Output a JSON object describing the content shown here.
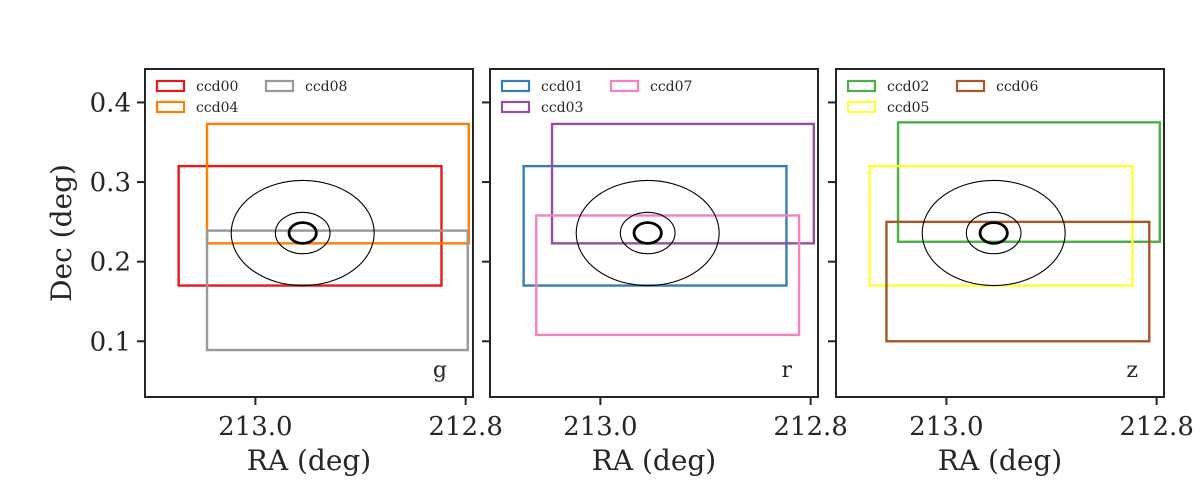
{
  "chart_data": {
    "type": "scatter",
    "xlabel": "RA (deg)",
    "ylabel": "Dec (deg)",
    "xlim": [
      213.105,
      212.793
    ],
    "ylim": [
      0.03,
      0.442
    ],
    "xticks": [
      213.0,
      212.8
    ],
    "xtick_labels": [
      "213.0",
      "212.8"
    ],
    "yticks": [
      0.1,
      0.2,
      0.3,
      0.4
    ],
    "ytick_labels": [
      "0.1",
      "0.2",
      "0.3",
      "0.4"
    ],
    "circles": {
      "center": [
        212.955,
        0.236
      ],
      "radii_dec_deg": [
        0.066,
        0.026,
        0.013
      ],
      "radii_ra_deg": [
        0.068,
        0.026,
        0.013
      ],
      "color": "#000000"
    },
    "panels": [
      {
        "band": "g",
        "ccds": [
          {
            "name": "ccd00",
            "color": "#e41a1c",
            "ra": [
              213.073,
              212.823
            ],
            "dec": [
              0.17,
              0.32
            ]
          },
          {
            "name": "ccd04",
            "color": "#ff7f00",
            "ra": [
              213.046,
              212.797
            ],
            "dec": [
              0.223,
              0.373
            ]
          },
          {
            "name": "ccd08",
            "color": "#999999",
            "ra": [
              213.046,
              212.798
            ],
            "dec": [
              0.089,
              0.239
            ]
          }
        ]
      },
      {
        "band": "r",
        "ccds": [
          {
            "name": "ccd01",
            "color": "#377eb8",
            "ra": [
              213.073,
              212.823
            ],
            "dec": [
              0.17,
              0.32
            ]
          },
          {
            "name": "ccd03",
            "color": "#984ea3",
            "ra": [
              213.046,
              212.797
            ],
            "dec": [
              0.223,
              0.373
            ]
          },
          {
            "name": "ccd07",
            "color": "#f781bf",
            "ra": [
              213.061,
              212.811
            ],
            "dec": [
              0.108,
              0.258
            ]
          }
        ]
      },
      {
        "band": "z",
        "ccds": [
          {
            "name": "ccd02",
            "color": "#4daf4a",
            "ra": [
              213.046,
              212.797
            ],
            "dec": [
              0.225,
              0.375
            ]
          },
          {
            "name": "ccd05",
            "color": "#ffff33",
            "ra": [
              213.073,
              212.823
            ],
            "dec": [
              0.17,
              0.32
            ]
          },
          {
            "name": "ccd06",
            "color": "#a65628",
            "ra": [
              213.057,
              212.807
            ],
            "dec": [
              0.1,
              0.25
            ]
          }
        ]
      }
    ]
  }
}
